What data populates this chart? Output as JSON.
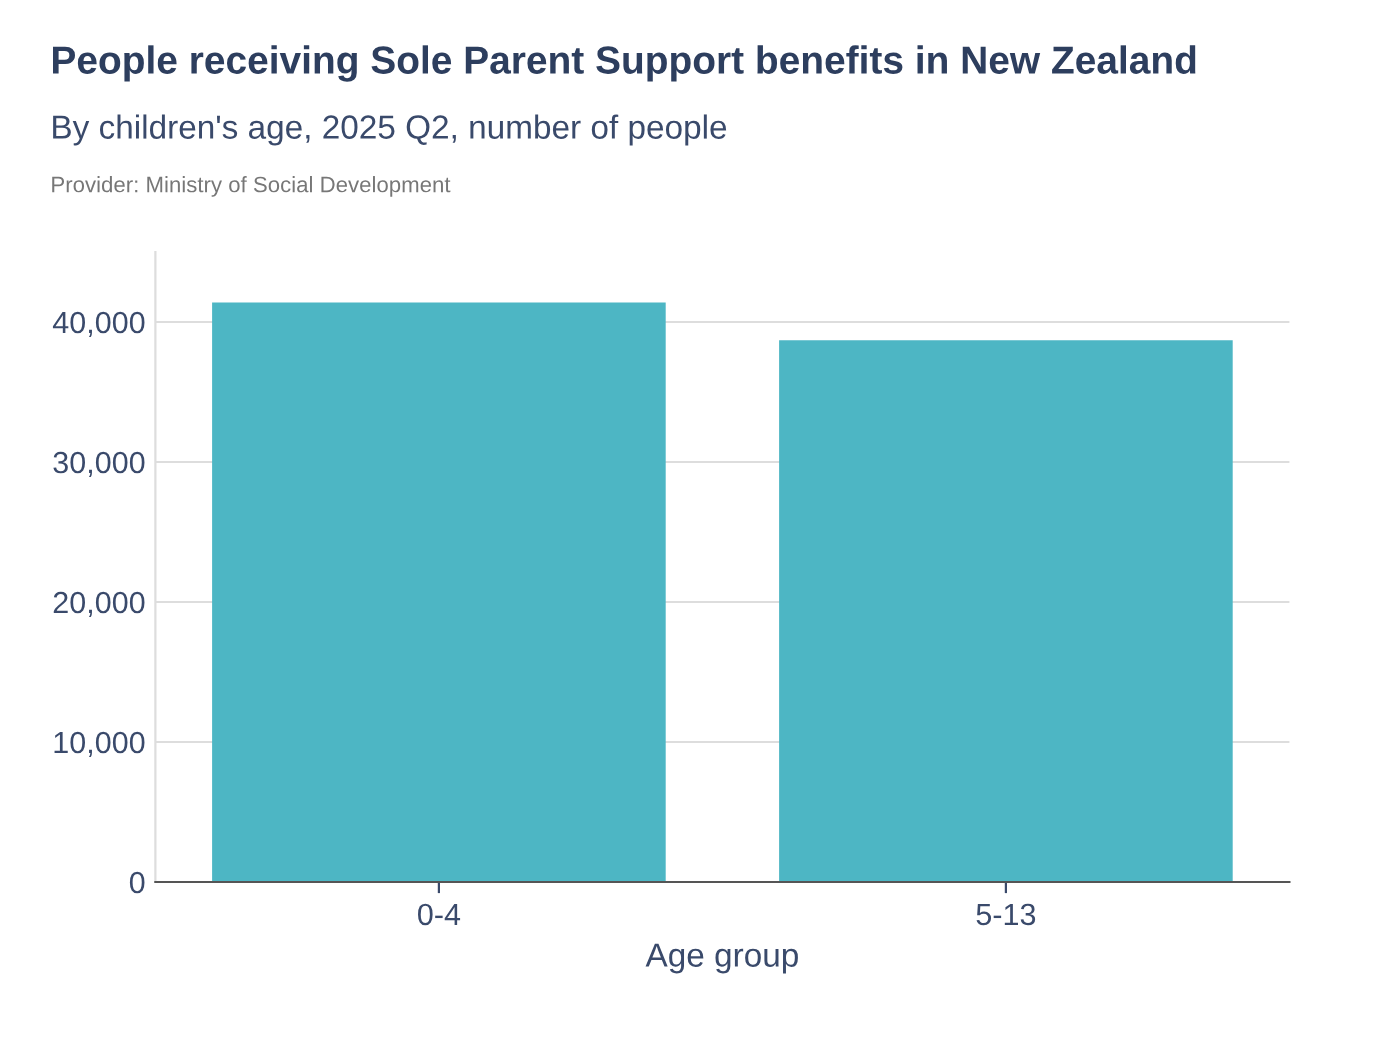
{
  "chart_data": {
    "type": "bar",
    "title": "People receiving Sole Parent Support benefits in New Zealand",
    "subtitle": "By children's age, 2025 Q2, number of people",
    "annotations": [
      "Provider: Ministry of Social Development"
    ],
    "xlabel": "Age group",
    "categories": [
      "0-4",
      "5-13"
    ],
    "values": [
      41400,
      38700
    ],
    "color": "#4db6c4",
    "ylim": [
      0,
      45000
    ],
    "yticks": [
      0,
      {
        "value": 10000,
        "label": "10,000"
      },
      {
        "value": 20000,
        "label": "20,000"
      },
      {
        "value": 30000,
        "label": "30,000"
      },
      {
        "value": 40000,
        "label": "40,000"
      }
    ],
    "grid": "y",
    "legend": false
  }
}
